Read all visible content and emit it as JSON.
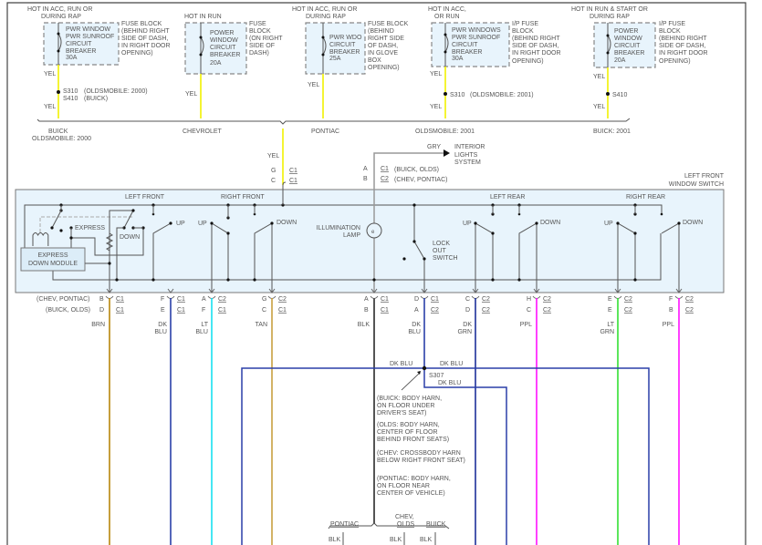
{
  "colors": {
    "yellow": "#f2f200",
    "gray": "#aaaaaa",
    "brown": "#b8860b",
    "dk_blu": "#2a3fa8",
    "lt_blu": "#18e0f0",
    "tan": "#c8a040",
    "blk": "#555555",
    "dk_grn": "#1c2f9a",
    "ppl": "#ff10ff",
    "lt_grn": "#33e033",
    "panel": "#e8f4fc"
  },
  "sources": [
    {
      "hot": [
        "HOT IN ACC, RUN OR",
        "DURING RAP"
      ],
      "device": [
        "PWR WINDOW",
        "PWR SUNROOF",
        "CIRCUIT",
        "BREAKER",
        "30A"
      ],
      "location": [
        "FUSE BLOCK",
        "(BEHIND RIGHT",
        "SIDE OF DASH,",
        "IN RIGHT DOOR",
        "OPENING)"
      ],
      "wire_top": "YEL",
      "splice": [
        "S310",
        "S410"
      ],
      "splice_note": [
        "(OLDSMOBILE: 2000)",
        "(BUICK)"
      ],
      "wire_bottom": "YEL"
    },
    {
      "hot": [
        "HOT IN RUN"
      ],
      "device": [
        "POWER",
        "WINDOW",
        "CIRCUIT",
        "BREAKER",
        "20A"
      ],
      "location": [
        "FUSE",
        "BLOCK",
        "(ON RIGHT",
        "SIDE OF",
        "DASH)"
      ],
      "wire_top": "YEL"
    },
    {
      "hot": [
        "HOT IN ACC, RUN OR",
        "DURING RAP"
      ],
      "device": [
        "PWR WDO",
        "CIRCUIT",
        "BREAKER",
        "25A"
      ],
      "location": [
        "FUSE BLOCK",
        "(BEHIND",
        "RIGHT SIDE",
        "OF DASH,",
        "IN GLOVE",
        "BOX",
        "OPENING)"
      ],
      "wire_top": "YEL"
    },
    {
      "hot": [
        "HOT IN ACC,",
        "OR RUN"
      ],
      "device": [
        "PWR WINDOWS",
        "PWR SUNROOF",
        "CIRCUIT",
        "BREAKER",
        "30A"
      ],
      "location": [
        "I/P FUSE",
        "BLOCK",
        "(BEHIND RIGHT",
        "SIDE OF DASH,",
        "IN RIGHT DOOR",
        "OPENING)"
      ],
      "wire_top": "YEL",
      "splice": [
        "S310"
      ],
      "splice_note": [
        "(OLDSMOBILE: 2001)"
      ],
      "wire_bottom": "YEL"
    },
    {
      "hot": [
        "HOT IN RUN & START OR",
        "DURING RAP"
      ],
      "device": [
        "POWER",
        "WINDOW",
        "CIRCUIT",
        "BREAKER",
        "20A"
      ],
      "location": [
        "I/P FUSE",
        "BLOCK",
        "(BEHIND RIGHT",
        "SIDE OF DASH,",
        "IN RIGHT DOOR",
        "OPENING)"
      ],
      "wire_top": "YEL",
      "splice": [
        "S410"
      ],
      "wire_bottom": "YEL"
    }
  ],
  "models": [
    "BUICK",
    "OLDSMOBILE: 2000",
    "CHEVROLET",
    "PONTIAC",
    "OLDSMOBILE: 2001",
    "BUICK: 2001"
  ],
  "feed": {
    "wire": "YEL",
    "pin1": "G",
    "conn1": "C1",
    "pin2": "C",
    "conn2": "C1"
  },
  "interior": {
    "wire": "GRY",
    "target": [
      "INTERIOR",
      "LIGHTS",
      "SYSTEM"
    ],
    "pin1": "A",
    "conn1": "C1",
    "note1": "(BUICK, OLDS)",
    "pin2": "B",
    "conn2": "C2",
    "note2": "(CHEV, PONTIAC)"
  },
  "switch": {
    "title": [
      "LEFT FRONT",
      "WINDOW SWITCH"
    ],
    "groups": [
      "LEFT FRONT",
      "RIGHT FRONT",
      "LEFT REAR",
      "RIGHT REAR"
    ],
    "labels": {
      "express": "EXPRESS",
      "down": "DOWN",
      "up": "UP",
      "lamp": [
        "ILLUMINATION",
        "LAMP"
      ],
      "lockout": [
        "LOCK",
        "OUT",
        "SWITCH"
      ],
      "module": [
        "EXPRESS",
        "DOWN MODULE"
      ]
    }
  },
  "connector_notes": [
    "(CHEV, PONTIAC)",
    "(BUICK, OLDS)"
  ],
  "terminals": [
    {
      "pin1": "B",
      "conn1": "C1",
      "pin2": "D",
      "conn2": "C1",
      "wire": [
        "BRN"
      ]
    },
    {
      "pin1": "F",
      "conn1": "C1",
      "pin2": "E",
      "conn2": "C1",
      "wire": [
        "DK",
        "BLU"
      ]
    },
    {
      "pin1": "A",
      "conn1": "C2",
      "pin2": "F",
      "conn2": "C1",
      "wire": [
        "LT",
        "BLU"
      ]
    },
    {
      "pin1": "G",
      "conn1": "C2",
      "pin2": "C",
      "conn2": "C1",
      "wire": [
        "TAN"
      ]
    },
    {
      "pin1": "A",
      "conn1": "C1",
      "pin2": "B",
      "conn2": "C1",
      "wire": [
        "BLK"
      ]
    },
    {
      "pin1": "D",
      "conn1": "C1",
      "pin2": "A",
      "conn2": "C2",
      "wire": [
        "DK",
        "BLU"
      ]
    },
    {
      "pin1": "C",
      "conn1": "C2",
      "pin2": "D",
      "conn2": "C2",
      "wire": [
        "DK",
        "GRN"
      ]
    },
    {
      "pin1": "H",
      "conn1": "C2",
      "pin2": "C",
      "conn2": "C2",
      "wire": [
        "PPL"
      ]
    },
    {
      "pin1": "E",
      "conn1": "C2",
      "pin2": "E",
      "conn2": "C2",
      "wire": [
        "LT",
        "GRN"
      ]
    },
    {
      "pin1": "F",
      "conn1": "C2",
      "pin2": "B",
      "conn2": "C2",
      "wire": [
        "PPL"
      ]
    }
  ],
  "splice_s307": {
    "id": "S307",
    "wire_left": "DK BLU",
    "wire_right": "DK BLU",
    "wire_down": "DK BLU",
    "notes": [
      [
        "(BUICK: BODY HARN,",
        "ON FLOOR UNDER",
        "DRIVER'S SEAT)"
      ],
      [
        "(OLDS: BODY HARN,",
        "CENTER OF FLOOR",
        "BEHIND FRONT SEATS)"
      ],
      [
        "(CHEV: CROSSBODY HARN",
        "BELOW RIGHT FRONT SEAT)"
      ],
      [
        "(PONTIAC: BODY HARN,",
        "ON FLOOR NEAR",
        "CENTER OF VEHICLE)"
      ]
    ]
  },
  "ground": {
    "models": [
      "PONTIAC",
      "CHEV,",
      "OLDS",
      "BUICK"
    ],
    "wires": [
      "BLK",
      "BLK",
      "BLK"
    ]
  }
}
